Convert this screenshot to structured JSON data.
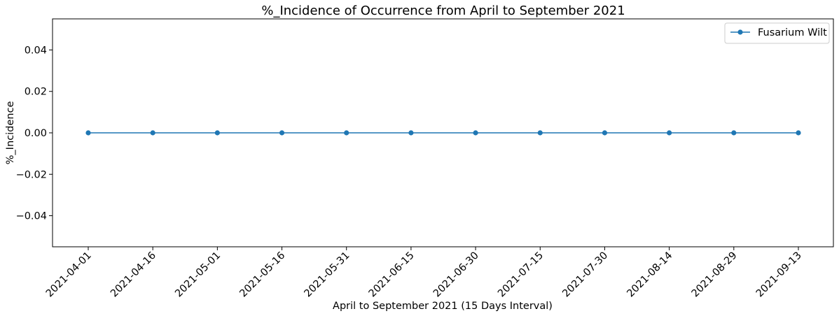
{
  "chart_data": {
    "type": "line",
    "title": "%_Incidence of Occurrence from April to September 2021",
    "xlabel": "April to September 2021 (15 Days Interval)",
    "ylabel": "%_Incidence",
    "categories": [
      "2021-04-01",
      "2021-04-16",
      "2021-05-01",
      "2021-05-16",
      "2021-05-31",
      "2021-06-15",
      "2021-06-30",
      "2021-07-15",
      "2021-07-30",
      "2021-08-14",
      "2021-08-29",
      "2021-09-13"
    ],
    "y_ticks": [
      "0.04",
      "0.02",
      "0.00",
      "−0.02",
      "−0.04"
    ],
    "y_tick_values": [
      0.04,
      0.02,
      0.0,
      -0.02,
      -0.04
    ],
    "ylim": [
      -0.055,
      0.055
    ],
    "grid": false,
    "legend": "top-right",
    "series": [
      {
        "name": "Fusarium Wilt",
        "color": "#1f77b4",
        "marker": "circle",
        "values": [
          0,
          0,
          0,
          0,
          0,
          0,
          0,
          0,
          0,
          0,
          0,
          0
        ]
      }
    ]
  }
}
